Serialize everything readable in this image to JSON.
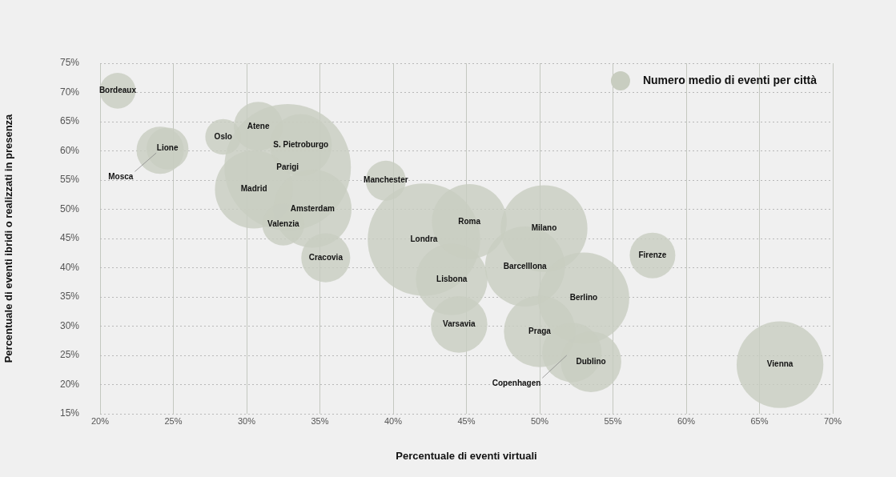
{
  "chart_data": {
    "type": "bubble",
    "xlabel": "Percentuale di eventi virtuali",
    "ylabel": "Percentuale di eventi ibridi o realizzati in presenza",
    "xlim": [
      20,
      70
    ],
    "ylim": [
      15,
      75
    ],
    "xticks": [
      {
        "value": 20,
        "label": "20%"
      },
      {
        "value": 25,
        "label": "25%"
      },
      {
        "value": 30,
        "label": "30%"
      },
      {
        "value": 35,
        "label": "35%"
      },
      {
        "value": 40,
        "label": "40%"
      },
      {
        "value": 45,
        "label": "45%"
      },
      {
        "value": 50,
        "label": "50%"
      },
      {
        "value": 55,
        "label": "55%"
      },
      {
        "value": 60,
        "label": "60%"
      },
      {
        "value": 65,
        "label": "65%"
      },
      {
        "value": 70,
        "label": "70%"
      }
    ],
    "yticks": [
      {
        "value": 15,
        "label": "15%"
      },
      {
        "value": 20,
        "label": "20%"
      },
      {
        "value": 25,
        "label": "25%"
      },
      {
        "value": 30,
        "label": "30%"
      },
      {
        "value": 35,
        "label": "35%"
      },
      {
        "value": 40,
        "label": "40%"
      },
      {
        "value": 45,
        "label": "45%"
      },
      {
        "value": 50,
        "label": "50%"
      },
      {
        "value": 55,
        "label": "55%"
      },
      {
        "value": 60,
        "label": "60%"
      },
      {
        "value": 65,
        "label": "65%"
      },
      {
        "value": 70,
        "label": "70%"
      },
      {
        "value": 75,
        "label": "75%"
      }
    ],
    "grid": true,
    "legend": "top right",
    "series": [
      {
        "name": "Numero medio di eventi per città",
        "color": "#c8cdc0",
        "x": [
          21.2,
          24.6,
          24.1,
          28.4,
          30.8,
          33.7,
          32.8,
          30.5,
          34.5,
          32.5,
          35.4,
          39.5,
          42.1,
          45.2,
          50.3,
          44.0,
          49.0,
          44.5,
          53.0,
          50.0,
          53.5,
          52.2,
          57.7,
          66.4
        ],
        "values": [
          70.3,
          60.4,
          60.1,
          62.4,
          64.2,
          61.0,
          57.2,
          53.4,
          50.1,
          47.4,
          41.7,
          54.9,
          44.8,
          47.9,
          46.7,
          38.0,
          40.2,
          30.3,
          34.8,
          29.1,
          23.9,
          25.5,
          42.1,
          23.4
        ],
        "sizes": [
          0.08,
          0.11,
          0.14,
          0.08,
          0.15,
          0.24,
          1,
          0.38,
          0.38,
          0.11,
          0.15,
          0.1,
          0.79,
          0.35,
          0.47,
          0.32,
          0.4,
          0.2,
          0.52,
          0.32,
          0.23,
          0.22,
          0.13,
          0.47
        ]
      }
    ],
    "annotations": [
      {
        "text": "Bordeaux",
        "x": 21.2,
        "y": 70.3
      },
      {
        "text": "Lione",
        "x": 24.6,
        "y": 60.4
      },
      {
        "text": "Mosca",
        "x": 24.1,
        "y": 60.1
      },
      {
        "text": "Oslo",
        "x": 28.4,
        "y": 62.4
      },
      {
        "text": "Atene",
        "x": 30.8,
        "y": 64.2
      },
      {
        "text": "S. Pietroburgo",
        "x": 33.7,
        "y": 61.0
      },
      {
        "text": "Parigi",
        "x": 32.8,
        "y": 57.2
      },
      {
        "text": "Madrid",
        "x": 30.5,
        "y": 53.4
      },
      {
        "text": "Amsterdam",
        "x": 34.5,
        "y": 50.1
      },
      {
        "text": "Valenzia",
        "x": 32.5,
        "y": 47.4
      },
      {
        "text": "Cracovia",
        "x": 35.4,
        "y": 41.7
      },
      {
        "text": "Manchester",
        "x": 39.5,
        "y": 54.9
      },
      {
        "text": "Londra",
        "x": 42.1,
        "y": 44.8
      },
      {
        "text": "Roma",
        "x": 45.2,
        "y": 47.9
      },
      {
        "text": "Milano",
        "x": 50.3,
        "y": 46.7
      },
      {
        "text": "Lisbona",
        "x": 44.0,
        "y": 38.0
      },
      {
        "text": "Barcelllona",
        "x": 49.0,
        "y": 40.2
      },
      {
        "text": "Varsavia",
        "x": 44.5,
        "y": 30.3
      },
      {
        "text": "Berlino",
        "x": 53.0,
        "y": 34.8
      },
      {
        "text": "Praga",
        "x": 50.0,
        "y": 29.1
      },
      {
        "text": "Dublino",
        "x": 53.5,
        "y": 23.9
      },
      {
        "text": "Copenhagen",
        "x": 52.2,
        "y": 25.5
      },
      {
        "text": "Firenze",
        "x": 57.7,
        "y": 42.1
      },
      {
        "text": "Vienna",
        "x": 66.4,
        "y": 23.4
      }
    ]
  }
}
